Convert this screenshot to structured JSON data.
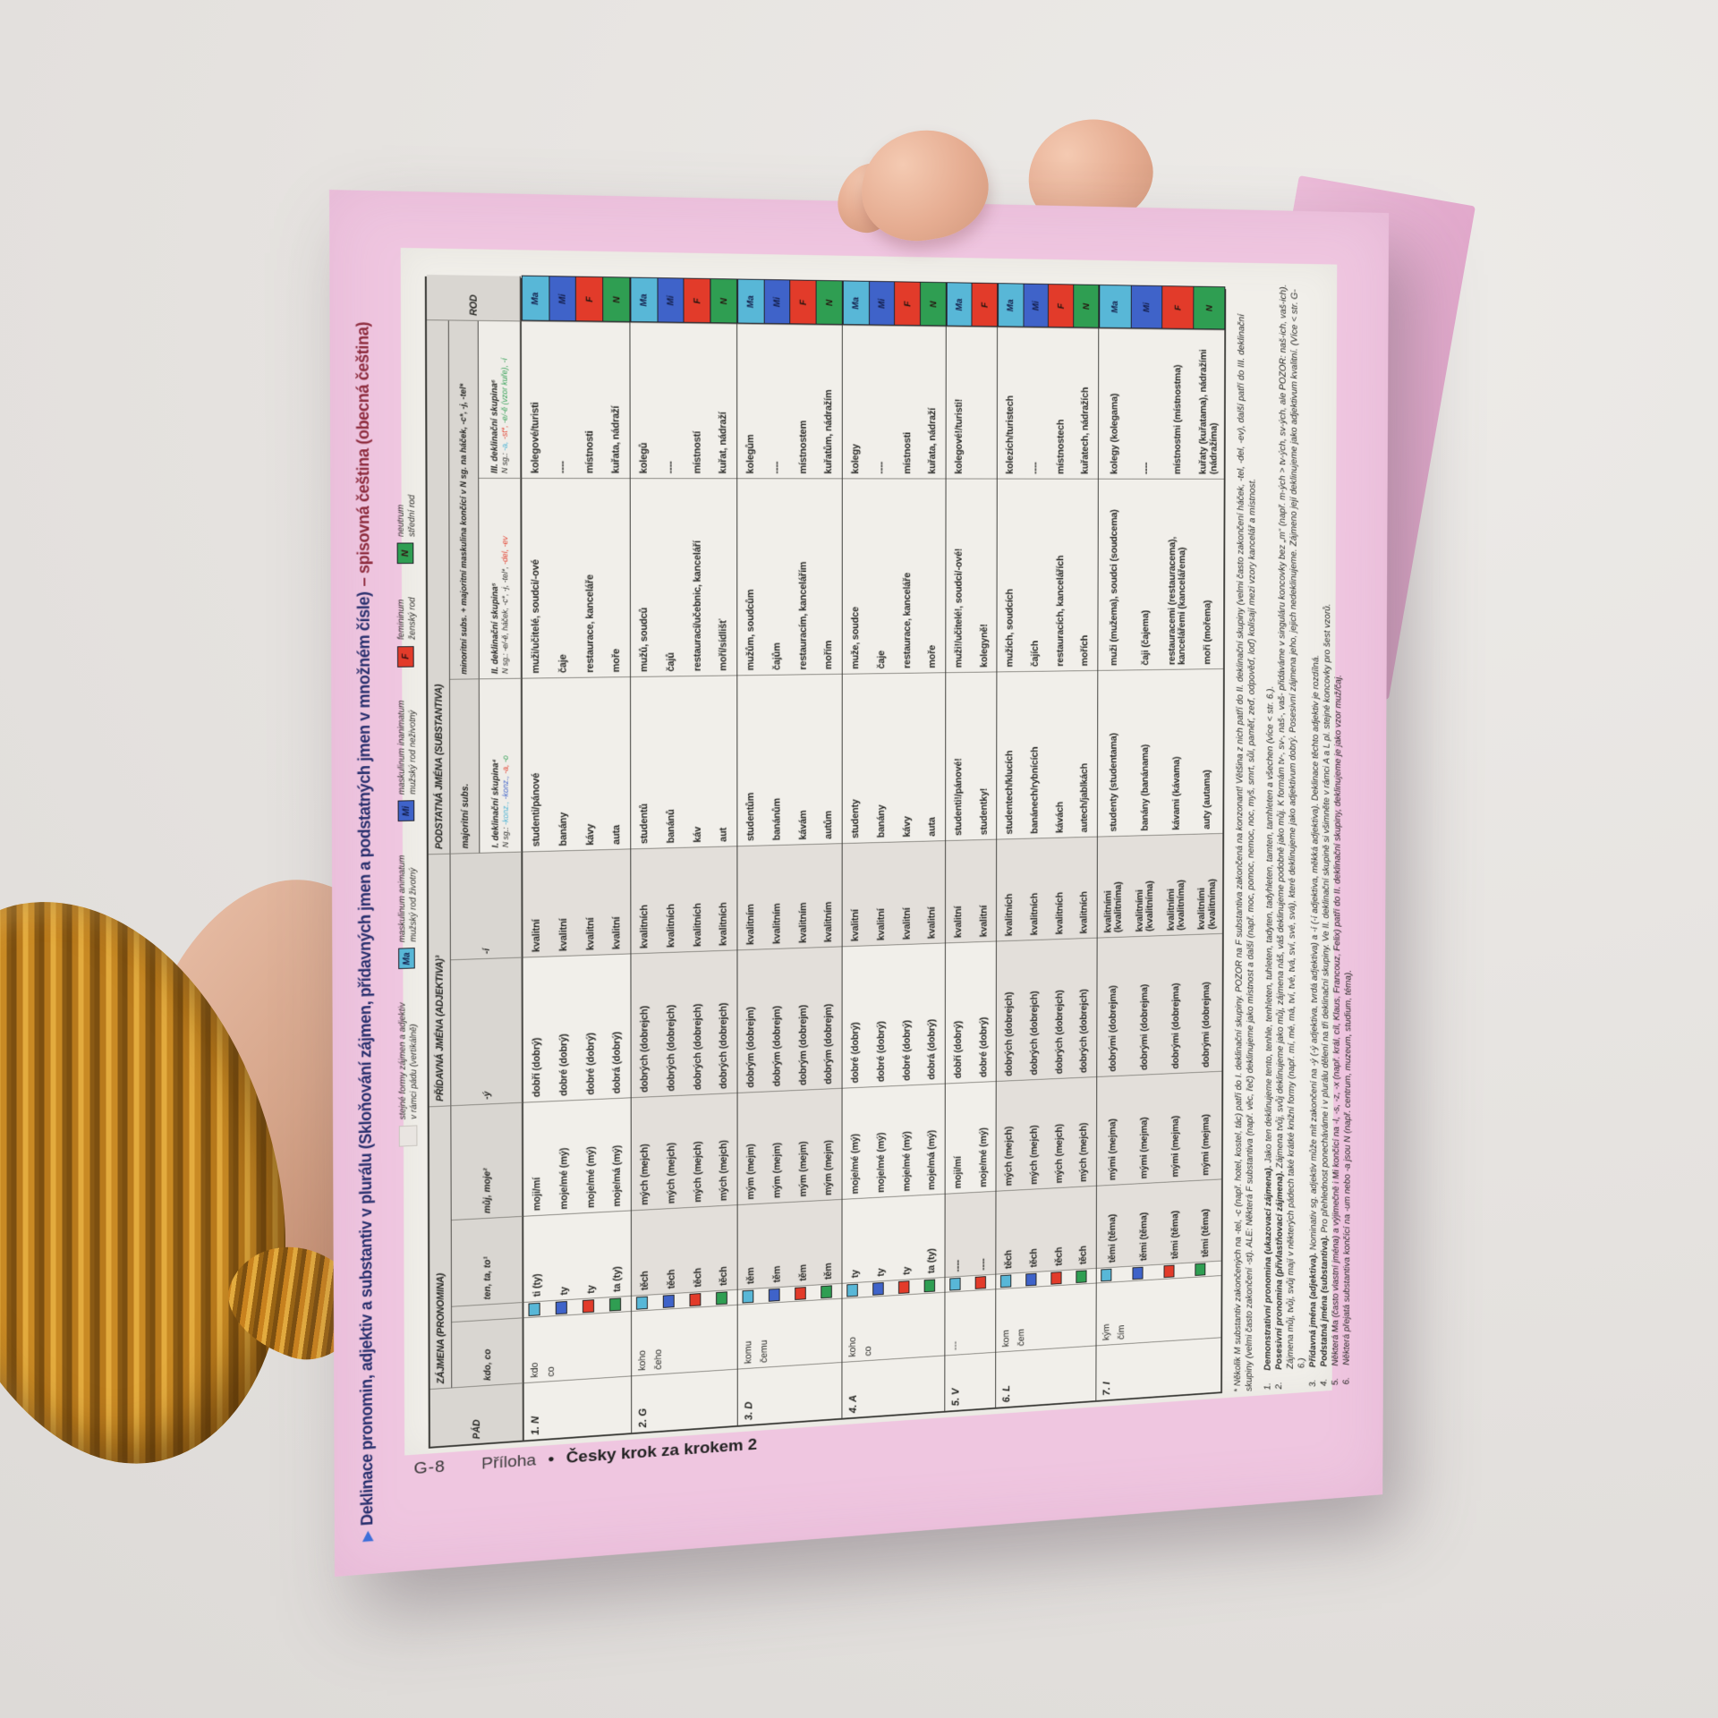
{
  "title": {
    "arrow": "▶",
    "main": "Deklinace pronomin, adjektiv a substantiv v plurálu (Skloňování zájmen, přídavných jmen a podstatných jmen v množném čísle)",
    "suffix": "– spisovná čeština (obecná čeština)"
  },
  "footer": {
    "page_no": "G-8",
    "section": "Příloha",
    "separator": "•",
    "book": "Česky krok za krokem 2"
  },
  "legend": {
    "same_forms_lines": [
      "stejné formy zájmen a adjektiv",
      "v rámci pádu (vertikálně)"
    ],
    "genders": [
      {
        "code": "Ma",
        "color": "#58b7d7",
        "lines": [
          "maskulinum animatum",
          "mužský rod životný"
        ]
      },
      {
        "code": "Mi",
        "color": "#3f63c9",
        "lines": [
          "maskulinum inanimatum",
          "mužský rod neživotný"
        ]
      },
      {
        "code": "F",
        "color": "#e23b2a",
        "lines": [
          "femininum",
          "ženský rod"
        ]
      },
      {
        "code": "N",
        "color": "#2f9e52",
        "lines": [
          "neutrum",
          "střední rod"
        ]
      }
    ]
  },
  "table": {
    "gender_colors": {
      "Ma": "#58b7d7",
      "Mi": "#3f63c9",
      "F": "#e23b2a",
      "N": "#2f9e52"
    },
    "headers": {
      "pad": "PÁD",
      "rod": "ROD",
      "zajmena": "ZÁJMENA (PRONOMINA)",
      "adjektiva": "PŘÍDAVNÁ JMÉNA (ADJEKTIVA)³",
      "substantiva": "PODSTATNÁ JMÉNA (SUBSTANTIVA)",
      "kdo": "kdo, co",
      "ten": "ten, ta, to¹",
      "muj": "můj, moje²",
      "adj_y": "-ý",
      "adj_i": "-í",
      "majoritni": "majoritní subs.",
      "minoritni": "minoritní subs. + majoritní maskulina končící v N sg. na háček, -c*, -j, -tel*",
      "sk1_name": "I. deklinační skupina⁴",
      "sk1_endings": [
        [
          "N sg.:",
          "#2b2b28"
        ],
        [
          " -konz.,",
          "#45b0d4"
        ],
        [
          " -konz.,",
          "#3f63c9"
        ],
        [
          " -a,",
          "#e23b2a"
        ],
        [
          " -o",
          "#2f9e52"
        ]
      ],
      "sk2_name": "II. deklinační skupina⁵",
      "sk2_endings": [
        [
          "N sg.: -e/-ě, háček, -c*, -j, -tel*,",
          "#2b2b28"
        ],
        [
          " -del, -ev",
          "#e23b2a"
        ]
      ],
      "sk3_name": "III. deklinační skupina⁶",
      "sk3_endings": [
        [
          "N sg.:",
          "#2b2b28"
        ],
        [
          " -a,",
          "#45b0d4"
        ],
        [
          " -st*,",
          "#e23b2a"
        ],
        [
          " -e/-ě (vzor kuře),",
          "#2f9e52"
        ],
        [
          " -í",
          "#2f9e52"
        ]
      ]
    },
    "cases": [
      {
        "pad": "1. N",
        "q": [
          "kdo",
          "co"
        ],
        "rows": [
          {
            "g": "Ma",
            "ten": "ti (ty)",
            "muj": "moji/mí",
            "adj_y": "dobří (dobrý)",
            "adj_i": "kvalitní",
            "s1": "studenti/pánové",
            "s2": "muži/učitelé, soudci/-ové",
            "s3": "kolegové/turisti"
          },
          {
            "g": "Mi",
            "ten": "ty",
            "muj": "moje/mé (mý)",
            "adj_y": "dobré (dobrý)",
            "adj_i": "kvalitní",
            "s1": "banány",
            "s2": "čaje",
            "s3": "----"
          },
          {
            "g": "F",
            "ten": "ty",
            "muj": "moje/mé (mý)",
            "adj_y": "dobré (dobrý)",
            "adj_i": "kvalitní",
            "s1": "kávy",
            "s2": "restaurace, kanceláře",
            "s3": "místnosti"
          },
          {
            "g": "N",
            "ten": "ta (ty)",
            "muj": "moje/má (mý)",
            "adj_y": "dobrá (dobrý)",
            "adj_i": "kvalitní",
            "s1": "auta",
            "s2": "moře",
            "s3": "kuřata, nádraží"
          }
        ]
      },
      {
        "pad": "2. G",
        "q": [
          "koho",
          "čeho"
        ],
        "rows": [
          {
            "g": "Ma",
            "ten": "těch",
            "muj": "mých (mejch)",
            "adj_y": "dobrých (dobrejch)",
            "adj_i": "kvalitních",
            "s1": "studentů",
            "s2": "mužů, soudců",
            "s3": "kolegů"
          },
          {
            "g": "Mi",
            "ten": "těch",
            "muj": "mých (mejch)",
            "adj_y": "dobrých (dobrejch)",
            "adj_i": "kvalitních",
            "s1": "banánů",
            "s2": "čajů",
            "s3": "----"
          },
          {
            "g": "F",
            "ten": "těch",
            "muj": "mých (mejch)",
            "adj_y": "dobrých (dobrejch)",
            "adj_i": "kvalitních",
            "s1": "káv",
            "s2": "restaurací/učebnic, kanceláří",
            "s3": "místností"
          },
          {
            "g": "N",
            "ten": "těch",
            "muj": "mých (mejch)",
            "adj_y": "dobrých (dobrejch)",
            "adj_i": "kvalitních",
            "s1": "aut",
            "s2": "moří/sídlišť",
            "s3": "kuřat, nádraží"
          }
        ]
      },
      {
        "pad": "3. D",
        "q": [
          "komu",
          "čemu"
        ],
        "rows": [
          {
            "g": "Ma",
            "ten": "těm",
            "muj": "mým (mejm)",
            "adj_y": "dobrým (dobrejm)",
            "adj_i": "kvalitním",
            "s1": "studentům",
            "s2": "mužům, soudcům",
            "s3": "kolegům"
          },
          {
            "g": "Mi",
            "ten": "těm",
            "muj": "mým (mejm)",
            "adj_y": "dobrým (dobrejm)",
            "adj_i": "kvalitním",
            "s1": "banánům",
            "s2": "čajům",
            "s3": "----"
          },
          {
            "g": "F",
            "ten": "těm",
            "muj": "mým (mejm)",
            "adj_y": "dobrým (dobrejm)",
            "adj_i": "kvalitním",
            "s1": "kávám",
            "s2": "restauracím, kancelářím",
            "s3": "místnostem"
          },
          {
            "g": "N",
            "ten": "těm",
            "muj": "mým (mejm)",
            "adj_y": "dobrým (dobrejm)",
            "adj_i": "kvalitním",
            "s1": "autům",
            "s2": "mořím",
            "s3": "kuřatům, nádražím"
          }
        ]
      },
      {
        "pad": "4. A",
        "q": [
          "koho",
          "co"
        ],
        "rows": [
          {
            "g": "Ma",
            "ten": "ty",
            "muj": "moje/mé (mý)",
            "adj_y": "dobré (dobrý)",
            "adj_i": "kvalitní",
            "s1": "studenty",
            "s2": "muže, soudce",
            "s3": "kolegy"
          },
          {
            "g": "Mi",
            "ten": "ty",
            "muj": "moje/mé (mý)",
            "adj_y": "dobré (dobrý)",
            "adj_i": "kvalitní",
            "s1": "banány",
            "s2": "čaje",
            "s3": "----"
          },
          {
            "g": "F",
            "ten": "ty",
            "muj": "moje/mé (mý)",
            "adj_y": "dobré (dobrý)",
            "adj_i": "kvalitní",
            "s1": "kávy",
            "s2": "restaurace, kanceláře",
            "s3": "místnosti"
          },
          {
            "g": "N",
            "ten": "ta (ty)",
            "muj": "moje/má (mý)",
            "adj_y": "dobrá (dobrý)",
            "adj_i": "kvalitní",
            "s1": "auta",
            "s2": "moře",
            "s3": "kuřata, nádraží"
          }
        ]
      },
      {
        "pad": "5. V",
        "q": [
          "---"
        ],
        "rows": [
          {
            "g": "Ma",
            "ten": "----",
            "muj": "moji/mí",
            "adj_y": "dobří (dobrý)",
            "adj_i": "kvalitní",
            "s1": "studenti!/pánové!",
            "s2": "muži!/učitelé!, soudci/-ové!",
            "s3": "kolegové!/turisti!"
          },
          {
            "g": "F",
            "ten": "----",
            "muj": "moje/mé (mý)",
            "adj_y": "dobré (dobrý)",
            "adj_i": "kvalitní",
            "s1": "studentky!",
            "s2": "kolegyně!",
            "s3": ""
          }
        ]
      },
      {
        "pad": "6. L",
        "q": [
          "kom",
          "čem"
        ],
        "rows": [
          {
            "g": "Ma",
            "ten": "těch",
            "muj": "mých (mejch)",
            "adj_y": "dobrých (dobrejch)",
            "adj_i": "kvalitních",
            "s1": "studentech/klucích",
            "s2": "mužích, soudcích",
            "s3": "kolezích/turistech"
          },
          {
            "g": "Mi",
            "ten": "těch",
            "muj": "mých (mejch)",
            "adj_y": "dobrých (dobrejch)",
            "adj_i": "kvalitních",
            "s1": "banánech/rybnících",
            "s2": "čajích",
            "s3": "----"
          },
          {
            "g": "F",
            "ten": "těch",
            "muj": "mých (mejch)",
            "adj_y": "dobrých (dobrejch)",
            "adj_i": "kvalitních",
            "s1": "kávách",
            "s2": "restauracích, kancelářích",
            "s3": "místnostech"
          },
          {
            "g": "N",
            "ten": "těch",
            "muj": "mých (mejch)",
            "adj_y": "dobrých (dobrejch)",
            "adj_i": "kvalitních",
            "s1": "autech/jablkách",
            "s2": "mořích",
            "s3": "kuřatech, nádražích"
          }
        ]
      },
      {
        "pad": "7. I",
        "q": [
          "kým",
          "čím"
        ],
        "rows": [
          {
            "g": "Ma",
            "ten": "těmi (těma)",
            "muj": "mými (mejma)",
            "adj_y": "dobrými (dobrejma)",
            "adj_i": "kvalitními (kvalitníma)",
            "s1": "studenty (studentama)",
            "s2": "muži (mužema), soudci (soudcema)",
            "s3": "kolegy (kolegama)"
          },
          {
            "g": "Mi",
            "ten": "těmi (těma)",
            "muj": "mými (mejma)",
            "adj_y": "dobrými (dobrejma)",
            "adj_i": "kvalitními (kvalitníma)",
            "s1": "banány (banánama)",
            "s2": "čaji (čajema)",
            "s3": "----"
          },
          {
            "g": "F",
            "ten": "těmi (těma)",
            "muj": "mými (mejma)",
            "adj_y": "dobrými (dobrejma)",
            "adj_i": "kvalitními (kvalitníma)",
            "s1": "kávami (kávama)",
            "s2": "restauracemi (restauracema), kancelářemi (kancelářema)",
            "s3": "místnostmi (místnostma)"
          },
          {
            "g": "N",
            "ten": "těmi (těma)",
            "muj": "mými (mejma)",
            "adj_y": "dobrými (dobrejma)",
            "adj_i": "kvalitními (kvalitníma)",
            "s1": "auty (autama)",
            "s2": "moři (mořema)",
            "s3": "kuřaty (kuřatama), nádražími (nádražíma)"
          }
        ]
      }
    ]
  },
  "footnotes": {
    "star": "* Několik M substantiv zakončených na -tel, -c (např. hotel, kostel, tác) patří do I. deklinační skupiny. POZOR na F substantiva zakončená na konzonant! Většina z nich patří do II. deklinační skupiny (velmi často zakončení háček, -tel, -del, -ev), další patří do III. deklinační skupiny (velmi často zakončení -st). ALE: Některá F substantiva (např. věc, řeč) deklinujeme jako místnost a další (např. moc, pomoc, nemoc, noc, myš, smrt, sůl, paměť, zeď, odpověď, loď) kolísají mezi vzory kancelář a místnost.",
    "items": [
      {
        "n": "1.",
        "lead": "Demonstrativní pronomina (ukazovací zájmena).",
        "rest": " Jako ten deklinujeme tento, tenhle, tenhleten, tuhleten, tadyten, tadyhleten, tamten, tamhleten a všechen (více < str. 6.)."
      },
      {
        "n": "2.",
        "lead": "Posesivní pronomina (přivlastňovací zájmena).",
        "rest": " Zájmena tvůj, svůj deklinujeme jako můj, zájmena náš, váš deklinujeme podobně jako můj. K formám tv-, sv-, naš-, vaš- přidáváme v singuláru koncovky bez „m“ (např. m-ých > tv-ých, sv-ých, ale POZOR: naš-ich, vaš-ich). Zájmena můj, tvůj, svůj mají v některých pádech také krátké knižní formy (např. mí, mé, má, tví, tvé, tvá, sví, své, svá), které deklinujeme jako adjektivum dobrý. Posesivní zájmena jeho, jejich nedeklinujeme. Zájmeno její deklinujeme jako adjektivum kvalitní. (Více < str. G-6.)"
      },
      {
        "n": "3.",
        "lead": "Přídavná jména (adjektiva).",
        "rest": " Nominativ sg. adjektiv může mít zakončení na -ý (-ý adjektiva, tvrdá adjektiva) a -í (-í adjektiva, měkká adjektiva). Deklinace těchto adjektiv je rozdílná."
      },
      {
        "n": "4.",
        "lead": "Podstatná jména (substantiva).",
        "rest": " Pro přehlednost ponecháváme i v plurálu dělení na tři deklinační skupiny. Ve II. deklinační skupině si všimněte v rámci A a L pl. stejné koncovky pro šest vzorů."
      },
      {
        "n": "5.",
        "lead": "",
        "rest": "Některá Ma (často vlastní jména) a výjimečně i Mi končící na -l, -s, -z, -x (např. král, cíl, Klaus, Francouz, Felix) patří do II. deklinační skupiny, deklinujeme je jako vzor muž/čaj."
      },
      {
        "n": "6.",
        "lead": "",
        "rest": "Některá přejatá substantiva končící na -um nebo -a jsou N (např. centrum, muzeum, studium, téma)."
      }
    ]
  },
  "colors": {
    "page_pink": "#efc6e0",
    "paper": "#f1efea",
    "header_gray": "#d9d6d1",
    "tint": "#e3dfda",
    "title_navy": "#29306e",
    "title_red": "#8e2c3e",
    "arrow_blue": "#3e6fd9",
    "ma": "#58b7d7",
    "mi": "#3f63c9",
    "f": "#e23b2a",
    "n": "#2f9e52"
  }
}
